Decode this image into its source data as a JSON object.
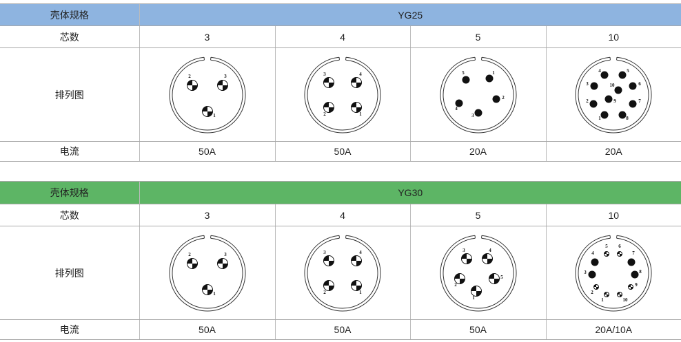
{
  "tables": [
    {
      "header_color": "#8eb4e0",
      "label_shell": "壳体规格",
      "shell": "YG25",
      "label_count": "芯数",
      "label_layout": "排列图",
      "label_current": "电流",
      "columns": [
        {
          "count": "3",
          "current": "50A",
          "pins": [
            {
              "n": "1",
              "type": "quarter"
            },
            {
              "n": "2",
              "type": "quarter"
            },
            {
              "n": "3",
              "type": "quarter"
            }
          ]
        },
        {
          "count": "4",
          "current": "50A",
          "pins": [
            {
              "n": "1",
              "type": "quarter"
            },
            {
              "n": "2",
              "type": "quarter"
            },
            {
              "n": "3",
              "type": "quarter"
            },
            {
              "n": "4",
              "type": "quarter"
            }
          ]
        },
        {
          "count": "5",
          "current": "20A",
          "pins": [
            {
              "n": "1",
              "type": "solid"
            },
            {
              "n": "2",
              "type": "solid"
            },
            {
              "n": "3",
              "type": "solid"
            },
            {
              "n": "4",
              "type": "solid"
            },
            {
              "n": "5",
              "type": "solid"
            }
          ]
        },
        {
          "count": "10",
          "current": "20A",
          "pins": [
            {
              "n": "1",
              "type": "solid"
            },
            {
              "n": "2",
              "type": "solid"
            },
            {
              "n": "3",
              "type": "solid"
            },
            {
              "n": "4",
              "type": "solid"
            },
            {
              "n": "5",
              "type": "solid"
            },
            {
              "n": "6",
              "type": "solid"
            },
            {
              "n": "7",
              "type": "solid"
            },
            {
              "n": "8",
              "type": "solid"
            },
            {
              "n": "9",
              "type": "solid"
            },
            {
              "n": "10",
              "type": "solid"
            }
          ]
        }
      ]
    },
    {
      "header_color": "#5db565",
      "label_shell": "壳体规格",
      "shell": "YG30",
      "label_count": "芯数",
      "label_layout": "排列图",
      "label_current": "电流",
      "columns": [
        {
          "count": "3",
          "current": "50A",
          "pins": [
            {
              "n": "1",
              "type": "quarter"
            },
            {
              "n": "2",
              "type": "quarter"
            },
            {
              "n": "3",
              "type": "quarter"
            }
          ]
        },
        {
          "count": "4",
          "current": "50A",
          "pins": [
            {
              "n": "1",
              "type": "quarter"
            },
            {
              "n": "2",
              "type": "quarter"
            },
            {
              "n": "3",
              "type": "quarter"
            },
            {
              "n": "4",
              "type": "quarter"
            }
          ]
        },
        {
          "count": "5",
          "current": "50A",
          "pins": [
            {
              "n": "1",
              "type": "quarter"
            },
            {
              "n": "2",
              "type": "quarter"
            },
            {
              "n": "3",
              "type": "quarter"
            },
            {
              "n": "4",
              "type": "quarter"
            },
            {
              "n": "5",
              "type": "quarter"
            }
          ]
        },
        {
          "count": "10",
          "current": "20A/10A",
          "pins": [
            {
              "n": "1",
              "type": "small"
            },
            {
              "n": "2",
              "type": "small"
            },
            {
              "n": "3",
              "type": "solid"
            },
            {
              "n": "4",
              "type": "solid"
            },
            {
              "n": "5",
              "type": "small"
            },
            {
              "n": "6",
              "type": "small"
            },
            {
              "n": "7",
              "type": "solid"
            },
            {
              "n": "8",
              "type": "solid"
            },
            {
              "n": "9",
              "type": "small"
            },
            {
              "n": "10",
              "type": "small"
            }
          ]
        }
      ]
    }
  ]
}
